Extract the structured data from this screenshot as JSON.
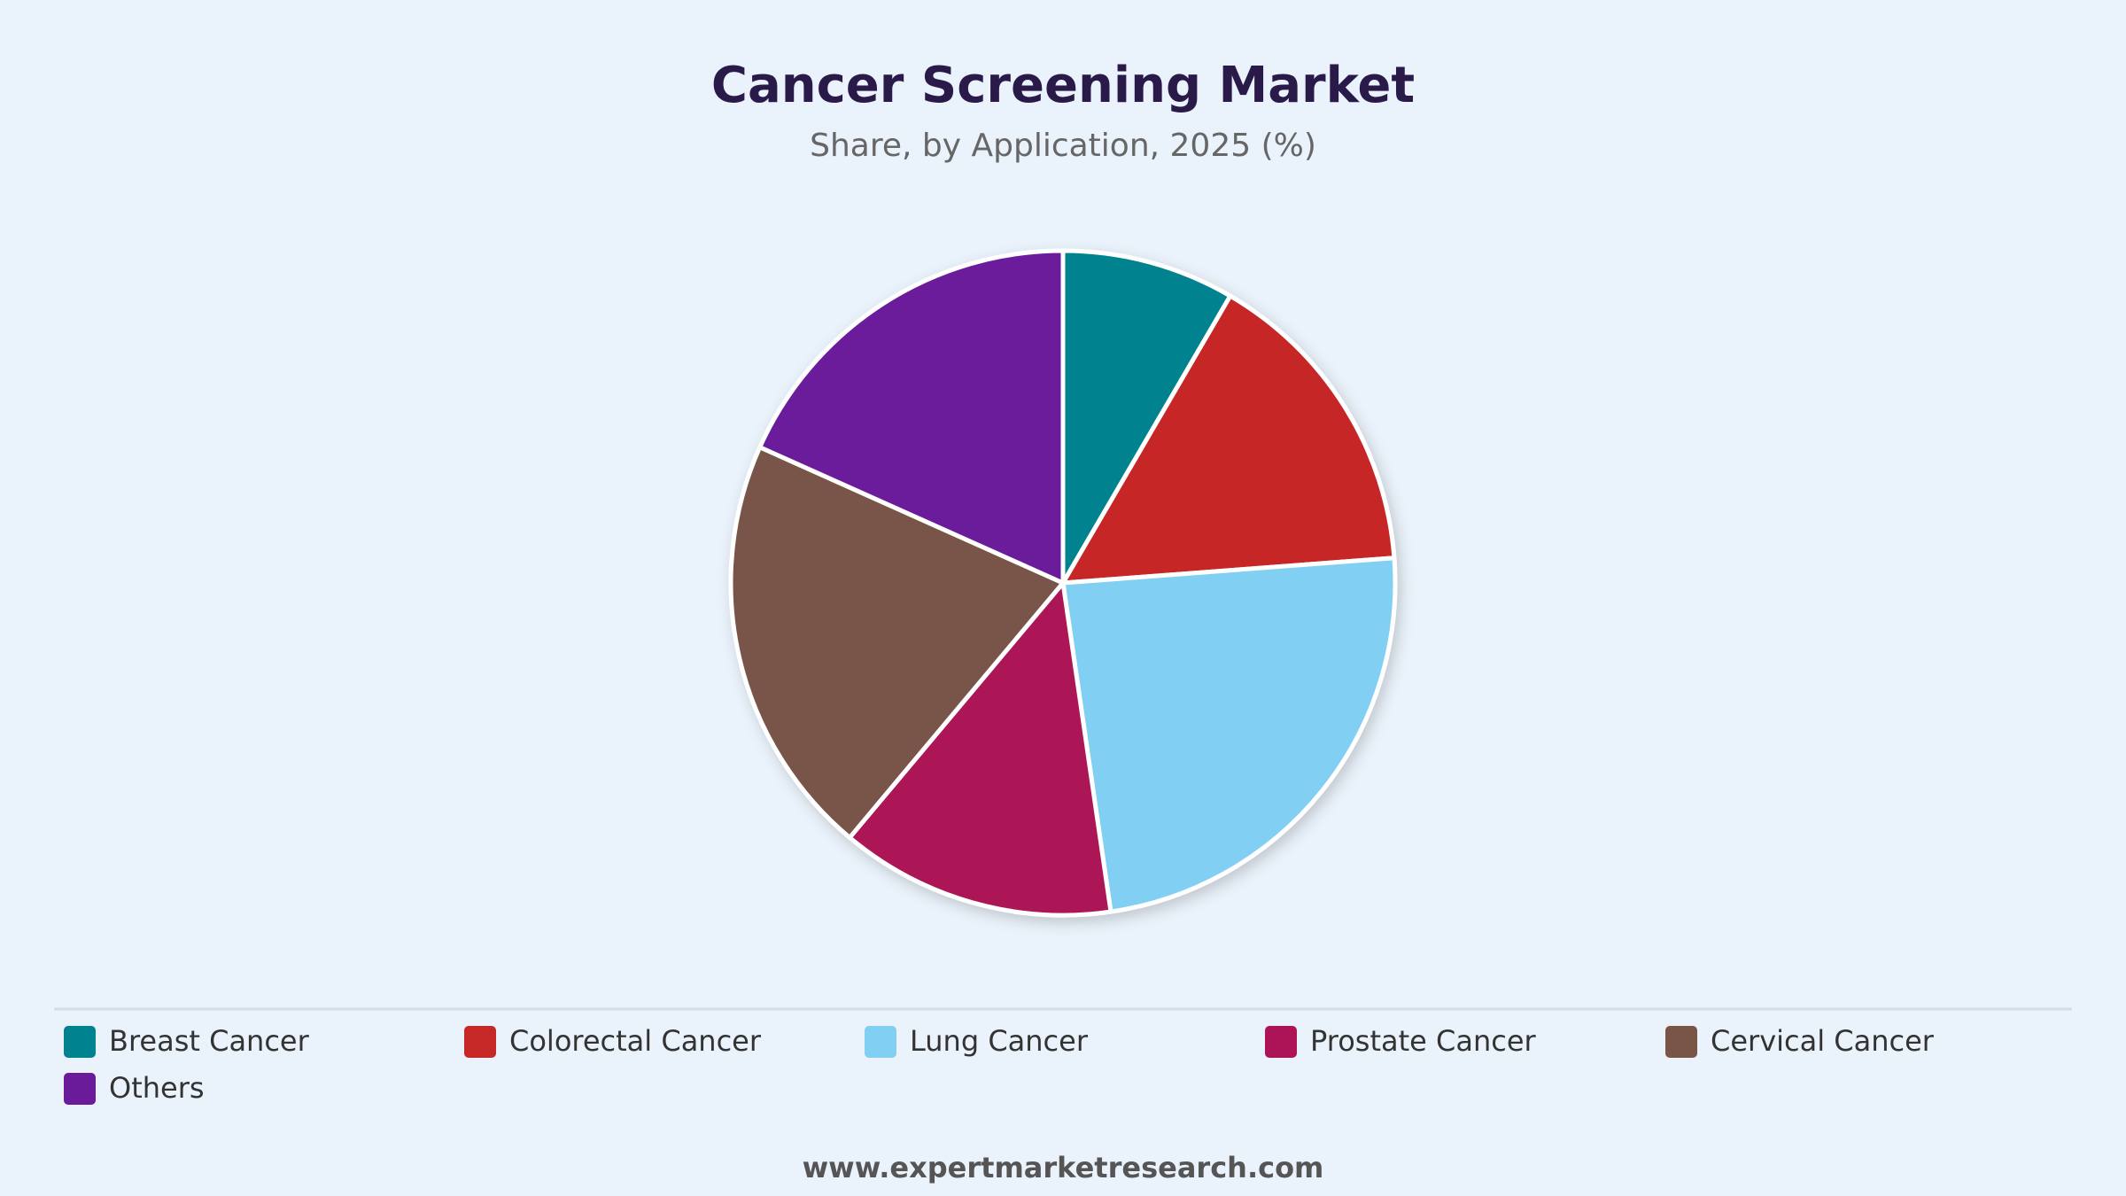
{
  "chart_data": {
    "type": "pie",
    "title": "Cancer Screening Market",
    "subtitle": "Share, by Application, 2025 (%)",
    "categories": [
      "Breast Cancer",
      "Colorectal Cancer",
      "Lung Cancer",
      "Prostate Cancer",
      "Cervical Cancer",
      "Others"
    ],
    "values": [
      8.4,
      15.4,
      23.9,
      13.4,
      20.6,
      18.3
    ],
    "colors": [
      "#00838f",
      "#c62828",
      "#81cff2",
      "#ad1457",
      "#795548",
      "#6a1b9a"
    ],
    "source": "www.expertmarketresearch.com"
  }
}
